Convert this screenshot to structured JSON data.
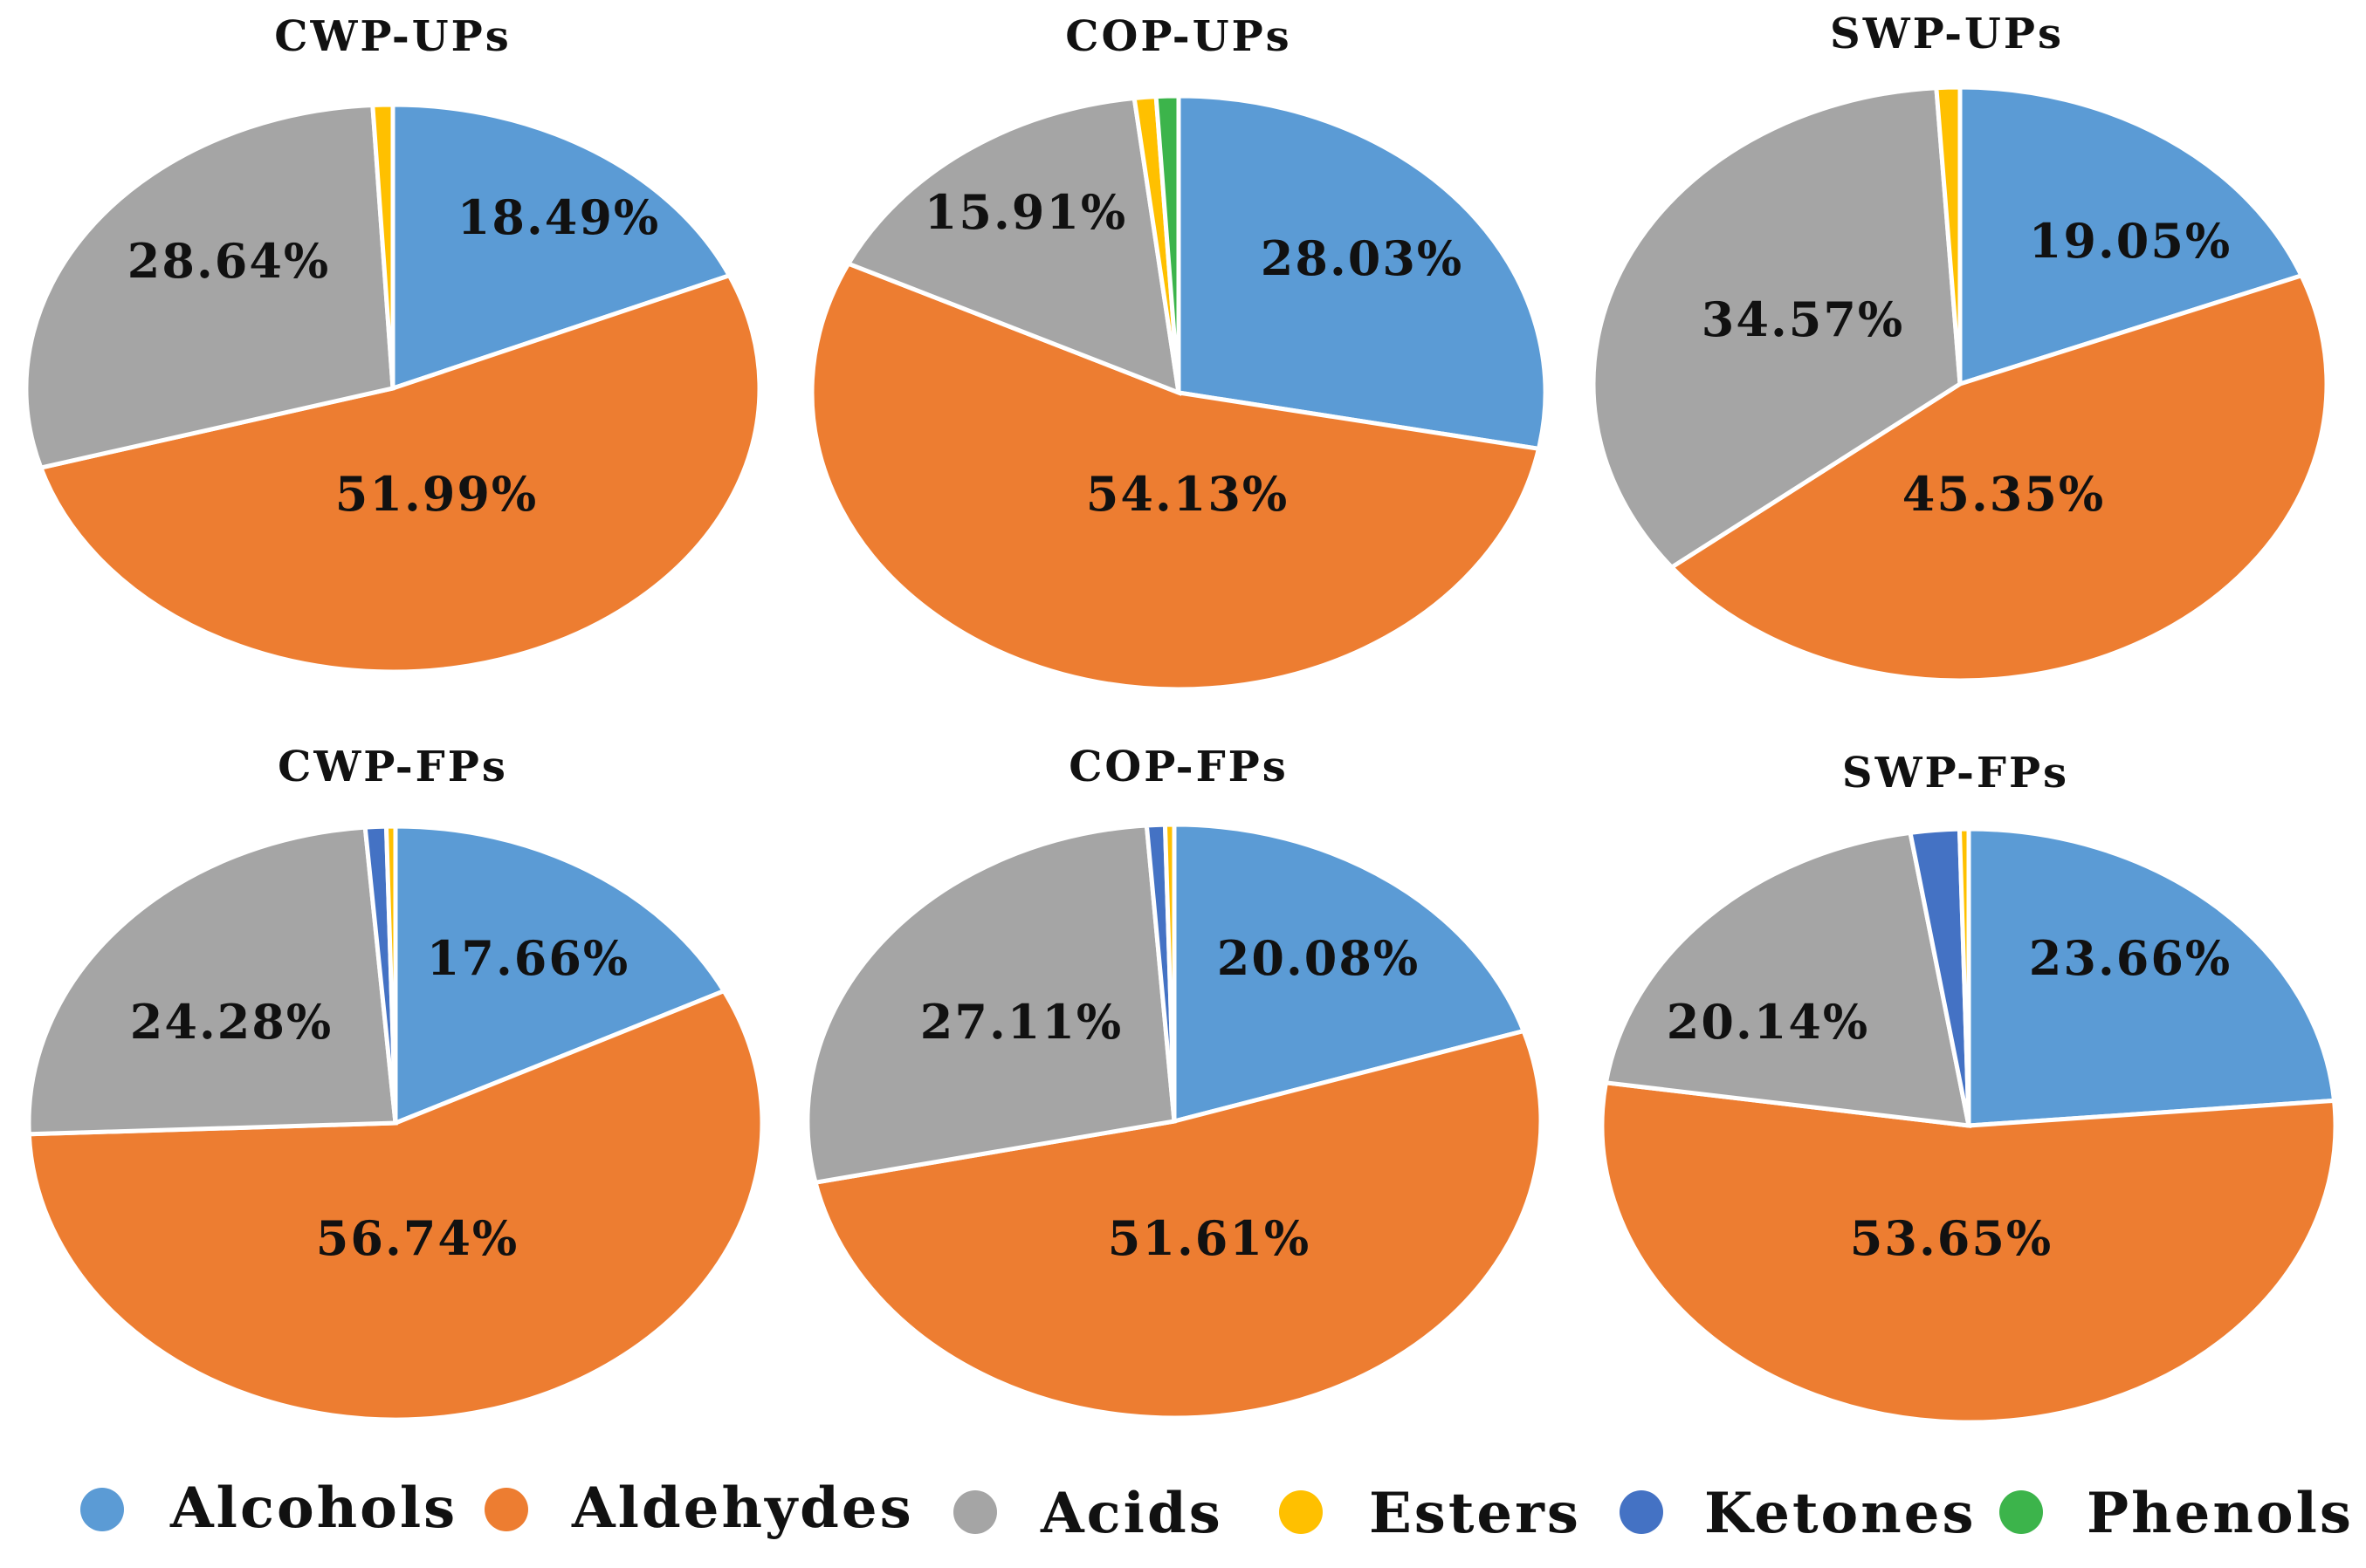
{
  "legend": [
    {
      "name": "Alcohols",
      "color": "#5b9bd5"
    },
    {
      "name": "Aldehydes",
      "color": "#ed7d31"
    },
    {
      "name": "Acids",
      "color": "#a5a5a5"
    },
    {
      "name": "Esters",
      "color": "#ffc000"
    },
    {
      "name": "Ketones",
      "color": "#4472c4"
    },
    {
      "name": "Phenols",
      "color": "#3cb44b"
    }
  ],
  "chart_data": [
    {
      "type": "pie",
      "title": "CWP-UPs",
      "slices": [
        {
          "name": "Alcohols",
          "value": 18.49,
          "label": "18.49%"
        },
        {
          "name": "Aldehydes",
          "value": 51.99,
          "label": "51.99%"
        },
        {
          "name": "Acids",
          "value": 28.64,
          "label": "28.64%"
        },
        {
          "name": "Esters",
          "value": 0.88,
          "label": ""
        }
      ]
    },
    {
      "type": "pie",
      "title": "COP-UPs",
      "slices": [
        {
          "name": "Alcohols",
          "value": 28.03,
          "label": "28.03%"
        },
        {
          "name": "Aldehydes",
          "value": 54.13,
          "label": "54.13%"
        },
        {
          "name": "Acids",
          "value": 15.91,
          "label": "15.91%"
        },
        {
          "name": "Esters",
          "value": 0.95,
          "label": ""
        },
        {
          "name": "Phenols",
          "value": 0.98,
          "label": ""
        }
      ]
    },
    {
      "type": "pie",
      "title": "SWP-UPs",
      "slices": [
        {
          "name": "Alcohols",
          "value": 19.05,
          "label": "19.05%"
        },
        {
          "name": "Aldehydes",
          "value": 45.35,
          "label": "45.35%"
        },
        {
          "name": "Acids",
          "value": 34.57,
          "label": "34.57%"
        },
        {
          "name": "Esters",
          "value": 1.03,
          "label": ""
        }
      ]
    },
    {
      "type": "pie",
      "title": "CWP-FPs",
      "slices": [
        {
          "name": "Alcohols",
          "value": 17.66,
          "label": "17.66%"
        },
        {
          "name": "Aldehydes",
          "value": 56.74,
          "label": "56.74%"
        },
        {
          "name": "Acids",
          "value": 24.28,
          "label": "24.28%"
        },
        {
          "name": "Ketones",
          "value": 0.92,
          "label": ""
        },
        {
          "name": "Esters",
          "value": 0.4,
          "label": ""
        }
      ]
    },
    {
      "type": "pie",
      "title": "COP-FPs",
      "slices": [
        {
          "name": "Alcohols",
          "value": 20.08,
          "label": "20.08%"
        },
        {
          "name": "Aldehydes",
          "value": 51.61,
          "label": "51.61%"
        },
        {
          "name": "Acids",
          "value": 27.11,
          "label": "27.11%"
        },
        {
          "name": "Ketones",
          "value": 0.8,
          "label": ""
        },
        {
          "name": "Esters",
          "value": 0.4,
          "label": ""
        }
      ]
    },
    {
      "type": "pie",
      "title": "SWP-FPs",
      "slices": [
        {
          "name": "Alcohols",
          "value": 23.66,
          "label": "23.66%"
        },
        {
          "name": "Aldehydes",
          "value": 53.65,
          "label": "53.65%"
        },
        {
          "name": "Acids",
          "value": 20.14,
          "label": "20.14%"
        },
        {
          "name": "Ketones",
          "value": 2.15,
          "label": ""
        },
        {
          "name": "Esters",
          "value": 0.4,
          "label": ""
        }
      ]
    }
  ]
}
